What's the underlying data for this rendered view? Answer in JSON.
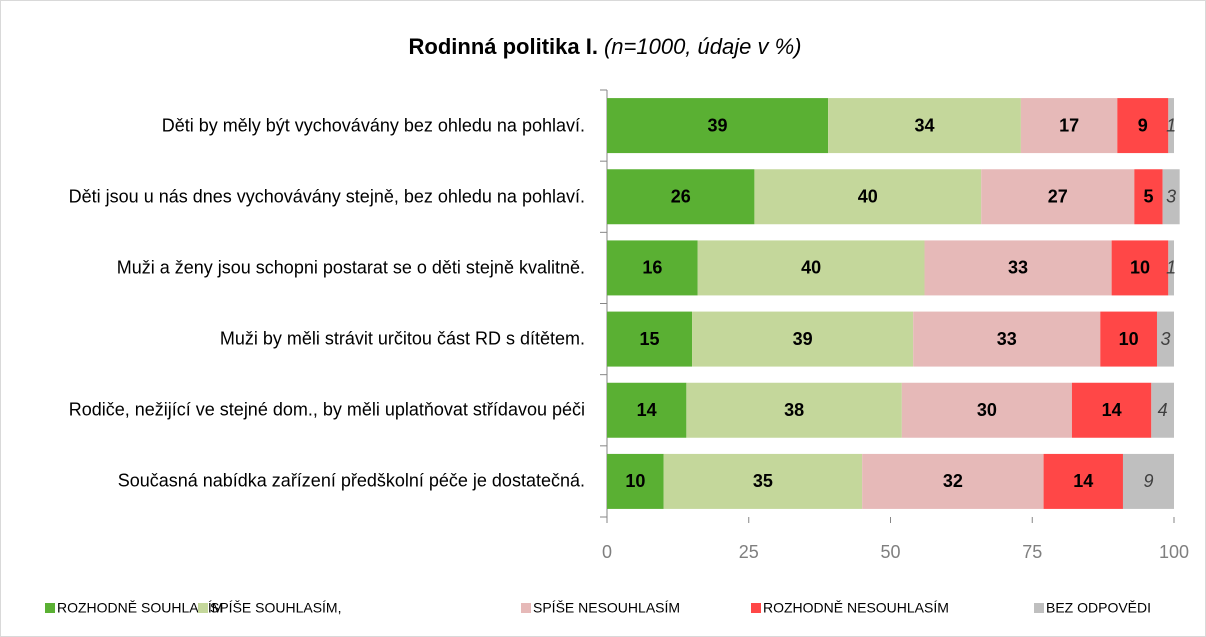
{
  "chart_data": {
    "type": "stacked_bar_horizontal",
    "title": "Rodinná politika I.",
    "subtitle": "(n=1000, údaje v %)",
    "categories": [
      "Děti by měly být vychovávány bez ohledu na pohlaví.",
      "Děti jsou u nás dnes vychovávány stejně, bez ohledu na pohlaví.",
      "Muži a ženy jsou schopni postarat se o děti stejně kvalitně.",
      "Muži by měli strávit určitou část RD s dítětem.",
      "Rodiče, nežijící ve stejné dom., by měli uplatňovat střídavou péči",
      "Současná nabídka zařízení předškolní péče je dostatečná."
    ],
    "series": [
      {
        "name": "ROZHODNĚ SOUHLASÍM",
        "color": "#5ab033",
        "values": [
          39,
          26,
          16,
          15,
          14,
          10
        ]
      },
      {
        "name": "SPÍŠE SOUHLASÍM,",
        "color": "#c4d79b",
        "values": [
          34,
          40,
          40,
          39,
          38,
          35
        ]
      },
      {
        "name": "SPÍŠE NESOUHLASÍM",
        "color": "#e6b9b8",
        "values": [
          17,
          27,
          33,
          33,
          30,
          32
        ]
      },
      {
        "name": "ROZHODNĚ NESOUHLASÍM",
        "color": "#ff4747",
        "values": [
          9,
          5,
          10,
          10,
          14,
          14
        ]
      },
      {
        "name": "BEZ ODPOVĚDI",
        "color": "#bfbfbf",
        "values": [
          1,
          3,
          1,
          3,
          4,
          9
        ]
      }
    ],
    "xlim": [
      0,
      100
    ],
    "xticks": [
      0,
      25,
      50,
      75,
      100
    ],
    "legend": "bottom"
  }
}
